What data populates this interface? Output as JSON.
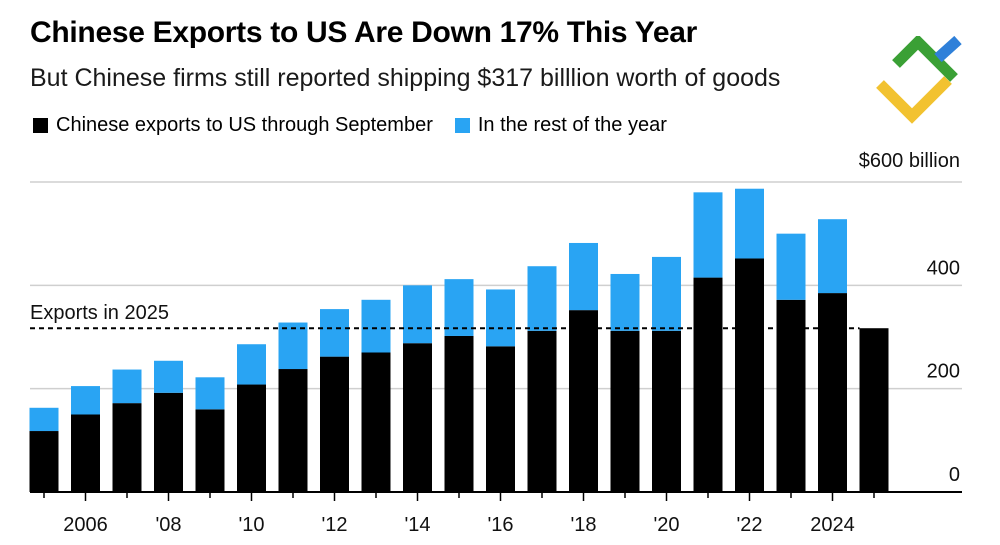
{
  "chart_data": {
    "type": "bar",
    "stacked": true,
    "title": "Chinese Exports to US Are Down 17% This Year",
    "subtitle": "But Chinese firms still reported shipping $317 billlion worth of goods",
    "years": [
      2005,
      2006,
      2007,
      2008,
      2009,
      2010,
      2011,
      2012,
      2013,
      2014,
      2015,
      2016,
      2017,
      2018,
      2019,
      2020,
      2021,
      2022,
      2023,
      2024,
      2025
    ],
    "x_tick_labels": [
      {
        "year": 2006,
        "label": "2006"
      },
      {
        "year": 2008,
        "label": "'08"
      },
      {
        "year": 2010,
        "label": "'10"
      },
      {
        "year": 2012,
        "label": "'12"
      },
      {
        "year": 2014,
        "label": "'14"
      },
      {
        "year": 2016,
        "label": "'16"
      },
      {
        "year": 2018,
        "label": "'18"
      },
      {
        "year": 2020,
        "label": "'20"
      },
      {
        "year": 2022,
        "label": "'22"
      },
      {
        "year": 2024,
        "label": "2024"
      }
    ],
    "series": [
      {
        "name": "Chinese exports to US through September",
        "color": "#000000",
        "values": [
          118,
          150,
          172,
          192,
          160,
          208,
          238,
          262,
          270,
          288,
          302,
          282,
          312,
          352,
          312,
          312,
          415,
          452,
          372,
          385,
          317
        ]
      },
      {
        "name": "In the rest of the year",
        "color": "#29a4f3",
        "values": [
          45,
          55,
          65,
          62,
          62,
          78,
          90,
          92,
          102,
          112,
          110,
          110,
          125,
          130,
          110,
          143,
          165,
          135,
          128,
          143,
          0
        ]
      }
    ],
    "y_axis": {
      "min": 0,
      "max": 600,
      "ticks": [
        0,
        200,
        400,
        600
      ],
      "tick_labels": [
        "0",
        "200",
        "400",
        "$600 billion"
      ],
      "position": "right"
    },
    "reference_line": {
      "value": 317,
      "label": "Exports in 2025",
      "style": "dashed"
    },
    "grid": true
  },
  "logo": {
    "name": "brand-logo",
    "colors": [
      "#3aa035",
      "#f2c230",
      "#2f80d9"
    ]
  }
}
